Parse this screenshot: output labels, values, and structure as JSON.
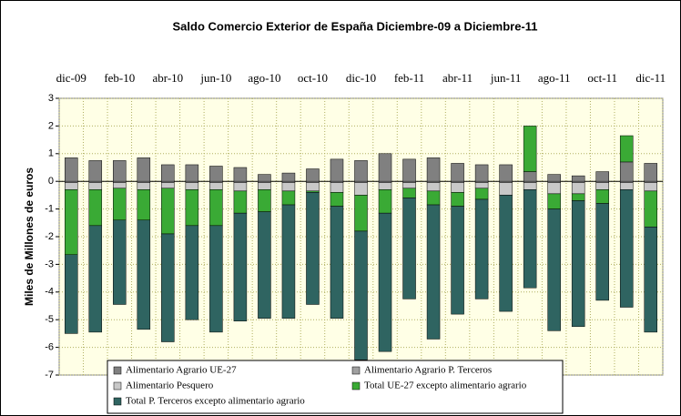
{
  "chart_data": {
    "type": "stacked_bar",
    "title": "Saldo Comercio Exterior de España Diciembre-09 a Diciembre-11",
    "y_label": "Miles de Millones de euros",
    "categories": [
      "dic-09",
      null,
      "feb-10",
      null,
      "abr-10",
      null,
      "jun-10",
      null,
      "ago-10",
      null,
      "oct-10",
      null,
      "dic-10",
      null,
      "feb-11",
      null,
      "abr-11",
      null,
      "jun-11",
      null,
      "ago-11",
      null,
      "oct-11",
      null,
      "dic-11"
    ],
    "series": [
      {
        "name": "Alimentario Agrario UE-27",
        "color": "#808080",
        "values": [
          0.85,
          0.75,
          0.75,
          0.85,
          0.6,
          0.6,
          0.55,
          0.5,
          0.25,
          0.3,
          0.45,
          0.8,
          0.75,
          1.0,
          0.8,
          0.85,
          0.65,
          0.6,
          0.6,
          0.35,
          0.25,
          0.2,
          0.35,
          0.7,
          0.65
        ]
      },
      {
        "name": "Alimentario Agrario P. Terceros",
        "color": "#a0a0a0",
        "values": [
          -0.05,
          -0.05,
          -0.05,
          -0.05,
          -0.05,
          -0.05,
          -0.05,
          -0.05,
          -0.05,
          -0.05,
          -0.05,
          -0.05,
          -0.05,
          -0.05,
          -0.05,
          -0.05,
          -0.05,
          -0.05,
          -0.05,
          -0.05,
          -0.05,
          -0.05,
          -0.05,
          -0.05,
          -0.05
        ]
      },
      {
        "name": "Alimentario Pesquero",
        "color": "#c8c8c8",
        "values": [
          -0.25,
          -0.25,
          -0.2,
          -0.25,
          -0.2,
          -0.25,
          -0.25,
          -0.3,
          -0.25,
          -0.3,
          -0.3,
          -0.35,
          -0.45,
          -0.25,
          -0.2,
          -0.3,
          -0.35,
          -0.2,
          -0.45,
          -0.25,
          -0.4,
          -0.4,
          -0.25,
          -0.25,
          -0.3
        ]
      },
      {
        "name": "Total UE-27 excepto alimentario agrario",
        "color": "#3aaa35",
        "values": [
          -2.35,
          -1.3,
          -1.15,
          -1.1,
          -1.65,
          -1.3,
          -1.3,
          -0.8,
          -0.8,
          -0.5,
          -0.05,
          -0.5,
          -1.3,
          -0.85,
          -0.35,
          -0.5,
          -0.5,
          -0.4,
          0,
          1.65,
          -0.55,
          -0.25,
          -0.5,
          0.95,
          -1.3
        ]
      },
      {
        "name": "Total P. Terceros excepto alimentario agrario",
        "color": "#2f6461",
        "values": [
          -2.85,
          -3.85,
          -3.05,
          -3.95,
          -3.9,
          -3.4,
          -3.85,
          -3.9,
          -3.85,
          -4.1,
          -4.05,
          -4.05,
          -4.65,
          -5.0,
          -3.65,
          -4.85,
          -3.9,
          -3.6,
          -4.2,
          -3.55,
          -4.4,
          -4.55,
          -3.5,
          -4.25,
          -3.8
        ]
      }
    ],
    "ylim": [
      -7,
      3
    ],
    "yticks": [
      -7,
      -6,
      -5,
      -4,
      -3,
      -2,
      -1,
      0,
      1,
      2,
      3
    ],
    "grid": true,
    "legend": "bottom"
  }
}
